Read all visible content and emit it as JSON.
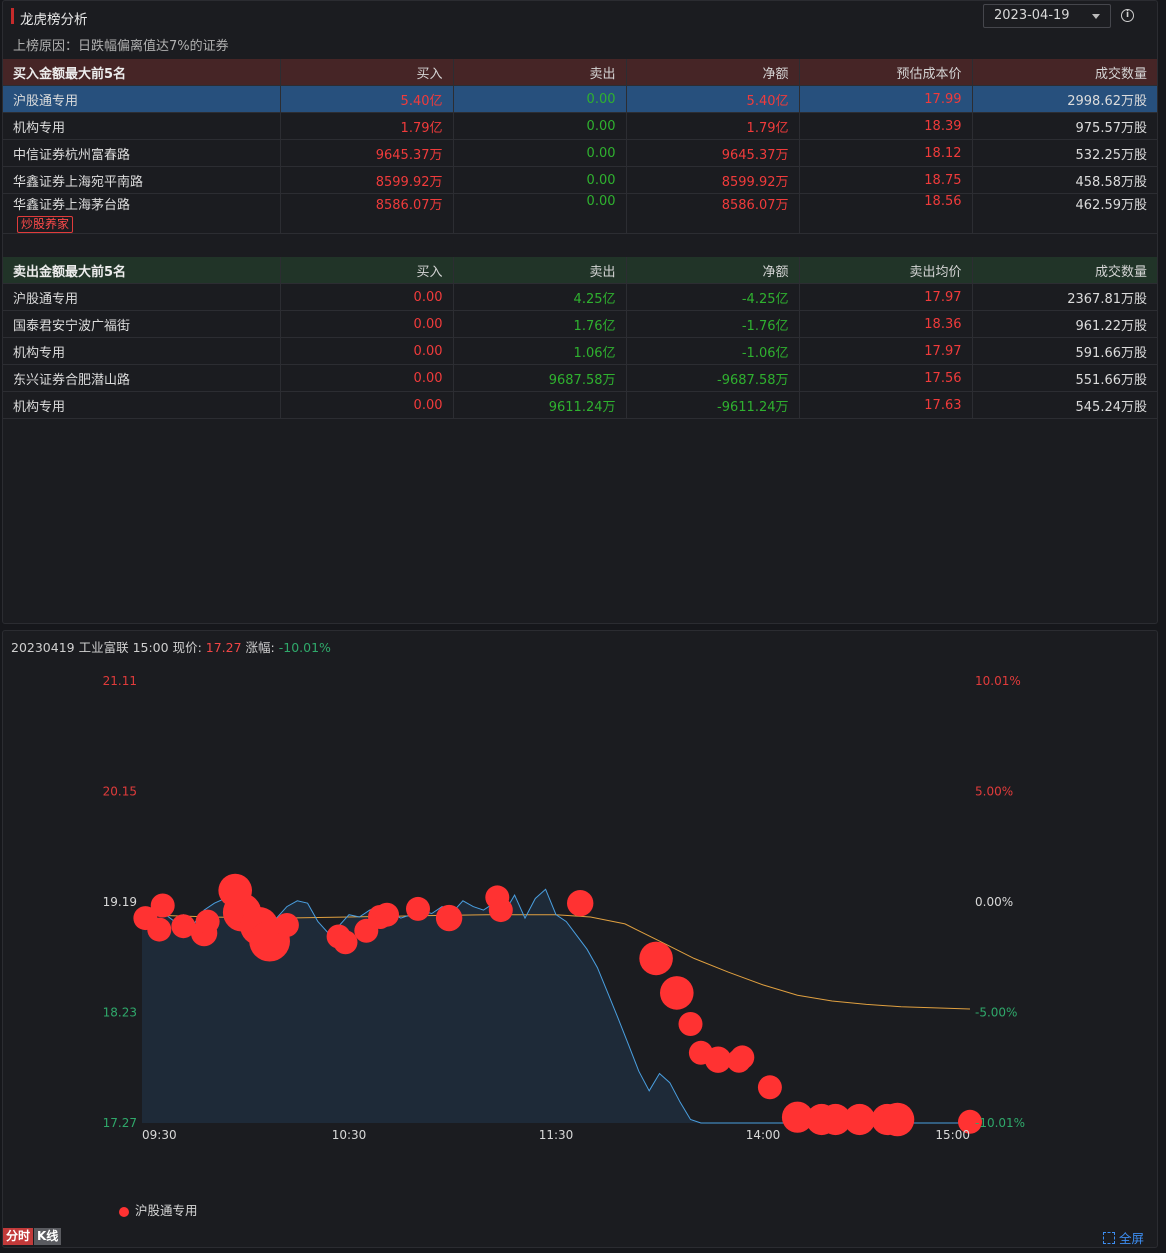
{
  "header": {
    "title": "龙虎榜分析",
    "date": "2023-04-19",
    "reason": "上榜原因：日跌幅偏离值达7%的证券"
  },
  "buy_table": {
    "headers": [
      "买入金额最大前5名",
      "买入",
      "卖出",
      "净额",
      "预估成本价",
      "成交数量"
    ],
    "rows": [
      {
        "name": "沪股通专用",
        "buy": "5.40亿",
        "sell": "0.00",
        "net": "5.40亿",
        "price": "17.99",
        "volume": "2998.62万股"
      },
      {
        "name": "机构专用",
        "buy": "1.79亿",
        "sell": "0.00",
        "net": "1.79亿",
        "price": "18.39",
        "volume": "975.57万股"
      },
      {
        "name": "中信证券杭州富春路",
        "buy": "9645.37万",
        "sell": "0.00",
        "net": "9645.37万",
        "price": "18.12",
        "volume": "532.25万股"
      },
      {
        "name": "华鑫证券上海宛平南路",
        "buy": "8599.92万",
        "sell": "0.00",
        "net": "8599.92万",
        "price": "18.75",
        "volume": "458.58万股"
      },
      {
        "name": "华鑫证券上海茅台路",
        "buy": "8586.07万",
        "sell": "0.00",
        "net": "8586.07万",
        "price": "18.56",
        "volume": "462.59万股",
        "tag": "炒股养家"
      }
    ]
  },
  "sell_table": {
    "headers": [
      "卖出金额最大前5名",
      "买入",
      "卖出",
      "净额",
      "卖出均价",
      "成交数量"
    ],
    "rows": [
      {
        "name": "沪股通专用",
        "buy": "0.00",
        "sell": "4.25亿",
        "net": "-4.25亿",
        "price": "17.97",
        "volume": "2367.81万股"
      },
      {
        "name": "国泰君安宁波广福街",
        "buy": "0.00",
        "sell": "1.76亿",
        "net": "-1.76亿",
        "price": "18.36",
        "volume": "961.22万股"
      },
      {
        "name": "机构专用",
        "buy": "0.00",
        "sell": "1.06亿",
        "net": "-1.06亿",
        "price": "17.97",
        "volume": "591.66万股"
      },
      {
        "name": "东兴证券合肥潜山路",
        "buy": "0.00",
        "sell": "9687.58万",
        "net": "-9687.58万",
        "price": "17.56",
        "volume": "551.66万股"
      },
      {
        "name": "机构专用",
        "buy": "0.00",
        "sell": "9611.24万",
        "net": "-9611.24万",
        "price": "17.63",
        "volume": "545.24万股"
      }
    ]
  },
  "chart_info": {
    "prefix": "20230419 工业富联 15:00 现价:",
    "price": "17.27",
    "change_label": "涨幅:",
    "change": "-10.01%"
  },
  "chart_data": {
    "type": "line",
    "left_ticks": [
      "21.11",
      "20.15",
      "19.19",
      "18.23",
      "17.27"
    ],
    "left_tick_values": [
      21.11,
      20.15,
      19.19,
      18.23,
      17.27
    ],
    "right_ticks": [
      "10.01%",
      "5.00%",
      "0.00%",
      "-5.00%",
      "-10.01%"
    ],
    "x_ticks": [
      "09:30",
      "10:30",
      "11:30",
      "14:00",
      "15:00"
    ],
    "ylim": [
      17.27,
      21.11
    ],
    "series": [
      {
        "name": "price",
        "x_minutes": [
          0,
          3,
          6,
          9,
          12,
          15,
          18,
          21,
          24,
          27,
          30,
          33,
          36,
          39,
          42,
          45,
          48,
          51,
          54,
          57,
          60,
          63,
          66,
          69,
          72,
          75,
          78,
          81,
          84,
          87,
          90,
          93,
          96,
          99,
          102,
          105,
          108,
          111,
          114,
          117,
          120,
          123,
          126,
          129,
          132,
          135,
          138,
          141,
          144,
          147,
          150,
          153,
          156,
          159,
          162,
          165,
          168,
          171,
          174,
          177,
          180,
          183,
          186,
          189,
          192,
          195,
          198,
          201,
          204,
          207,
          210,
          213,
          216,
          219,
          222,
          225,
          228,
          231,
          234,
          237,
          240
        ],
        "values": [
          19.12,
          19.05,
          19.1,
          19.03,
          19.08,
          19.0,
          19.12,
          19.18,
          19.22,
          19.1,
          19.05,
          18.95,
          18.88,
          19.05,
          19.15,
          19.2,
          19.18,
          19.02,
          18.92,
          18.98,
          19.08,
          19.06,
          19.12,
          19.15,
          19.1,
          19.05,
          19.08,
          19.11,
          19.09,
          19.15,
          19.1,
          19.2,
          19.15,
          19.12,
          19.18,
          19.1,
          19.25,
          19.05,
          19.22,
          19.3,
          19.08,
          19.02,
          18.9,
          18.78,
          18.62,
          18.4,
          18.18,
          17.95,
          17.72,
          17.55,
          17.7,
          17.62,
          17.45,
          17.3,
          17.27,
          17.27,
          17.27,
          17.27,
          17.27,
          17.27,
          17.27,
          17.27,
          17.27,
          17.27,
          17.27,
          17.27,
          17.27,
          17.27,
          17.27,
          17.27,
          17.27,
          17.27,
          17.27,
          17.27,
          17.27,
          17.27,
          17.27,
          17.27,
          17.27,
          17.27,
          17.27
        ]
      },
      {
        "name": "avg",
        "x_minutes": [
          0,
          20,
          40,
          60,
          80,
          100,
          120,
          130,
          140,
          150,
          160,
          170,
          180,
          190,
          200,
          210,
          220,
          240
        ],
        "values": [
          19.08,
          19.06,
          19.05,
          19.06,
          19.07,
          19.08,
          19.08,
          19.06,
          19.0,
          18.85,
          18.7,
          18.58,
          18.47,
          18.38,
          18.33,
          18.3,
          18.28,
          18.26
        ]
      }
    ],
    "markers": {
      "name": "沪股通专用",
      "points": [
        {
          "t": 1,
          "v": 19.05,
          "s": 1
        },
        {
          "t": 5,
          "v": 18.95,
          "s": 1
        },
        {
          "t": 6,
          "v": 19.16,
          "s": 1
        },
        {
          "t": 12,
          "v": 18.98,
          "s": 1
        },
        {
          "t": 18,
          "v": 18.92,
          "s": 1.1
        },
        {
          "t": 19,
          "v": 19.02,
          "s": 1
        },
        {
          "t": 27,
          "v": 19.29,
          "s": 1.4
        },
        {
          "t": 29,
          "v": 19.1,
          "s": 1.6
        },
        {
          "t": 34,
          "v": 18.98,
          "s": 1.6
        },
        {
          "t": 37,
          "v": 18.85,
          "s": 1.7
        },
        {
          "t": 42,
          "v": 18.99,
          "s": 1
        },
        {
          "t": 57,
          "v": 18.89,
          "s": 1
        },
        {
          "t": 59,
          "v": 18.84,
          "s": 1
        },
        {
          "t": 65,
          "v": 18.94,
          "s": 1
        },
        {
          "t": 69,
          "v": 19.06,
          "s": 1
        },
        {
          "t": 71,
          "v": 19.08,
          "s": 1
        },
        {
          "t": 80,
          "v": 19.13,
          "s": 1
        },
        {
          "t": 89,
          "v": 19.05,
          "s": 1.1
        },
        {
          "t": 103,
          "v": 19.23,
          "s": 1
        },
        {
          "t": 104,
          "v": 19.12,
          "s": 1
        },
        {
          "t": 127,
          "v": 19.18,
          "s": 1.1
        },
        {
          "t": 149,
          "v": 18.7,
          "s": 1.4
        },
        {
          "t": 155,
          "v": 18.4,
          "s": 1.4
        },
        {
          "t": 159,
          "v": 18.13,
          "s": 1
        },
        {
          "t": 162,
          "v": 17.88,
          "s": 1
        },
        {
          "t": 167,
          "v": 17.82,
          "s": 1.1
        },
        {
          "t": 173,
          "v": 17.81,
          "s": 1
        },
        {
          "t": 174,
          "v": 17.84,
          "s": 1
        },
        {
          "t": 182,
          "v": 17.58,
          "s": 1
        },
        {
          "t": 190,
          "v": 17.32,
          "s": 1.3
        },
        {
          "t": 197,
          "v": 17.3,
          "s": 1.3
        },
        {
          "t": 201,
          "v": 17.3,
          "s": 1.3
        },
        {
          "t": 208,
          "v": 17.3,
          "s": 1.3
        },
        {
          "t": 216,
          "v": 17.3,
          "s": 1.3
        },
        {
          "t": 219,
          "v": 17.3,
          "s": 1.4
        },
        {
          "t": 240,
          "v": 17.28,
          "s": 1
        }
      ]
    },
    "colors": {
      "price": "#4a9fe0",
      "avg": "#e0a040",
      "marker": "#ff3232",
      "up": "#e03b3b",
      "down": "#2fa86a",
      "area": "#1e2a38"
    }
  },
  "footer": {
    "tab_fenshi": "分时",
    "tab_kline": "K线",
    "fullscreen": "全屏"
  }
}
